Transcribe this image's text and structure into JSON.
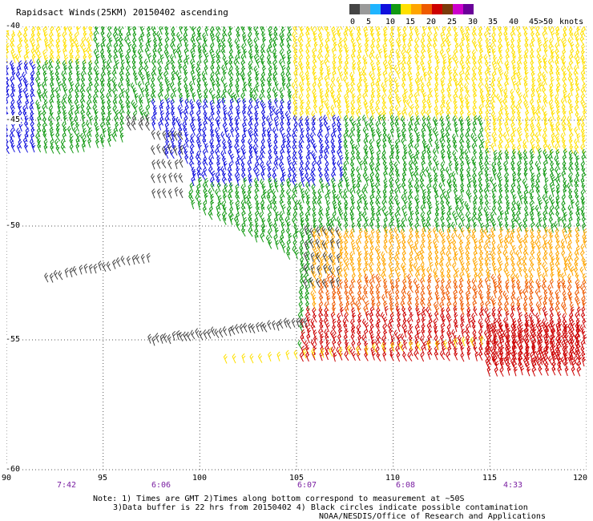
{
  "title": "Rapidsact Winds(25KM) 20150402 ascending",
  "legend": {
    "labels": [
      "0",
      "5",
      "10",
      "15",
      "20",
      "25",
      "30",
      "35",
      "40",
      "45",
      ">50",
      "knots"
    ],
    "colors": [
      "#444444",
      "#9a9a9a",
      "#1fb4ff",
      "#1010dd",
      "#129912",
      "#ffe000",
      "#ffa500",
      "#ee5a00",
      "#cc0000",
      "#7a3a0a",
      "#cc00cc",
      "#6a0099"
    ]
  },
  "map": {
    "lat_labels": [
      "-40",
      "-45",
      "-50",
      "-55",
      "-60"
    ],
    "lon_labels": [
      "90",
      "95",
      "100",
      "105",
      "110",
      "115",
      "120"
    ],
    "time_labels": [
      {
        "lon": 92,
        "text": "7:42"
      },
      {
        "lon": 97.5,
        "text": "6:06"
      },
      {
        "lon": 106,
        "text": "6:07"
      },
      {
        "lon": 111,
        "text": "6:08"
      },
      {
        "lon": 116,
        "text": "4:33"
      }
    ],
    "lon_range": [
      90,
      120
    ],
    "lat_range": [
      -60,
      -40
    ],
    "grid": "dotted"
  },
  "notes": {
    "line1": "Note: 1) Times are GMT 2)Times along bottom correspond to measurement at ~50S",
    "line2": "3)Data buffer is 22 hrs from 20150402 4) Black circles indicate possible contamination",
    "line3": "NOAA/NESDIS/Office of Research and Applications"
  }
}
